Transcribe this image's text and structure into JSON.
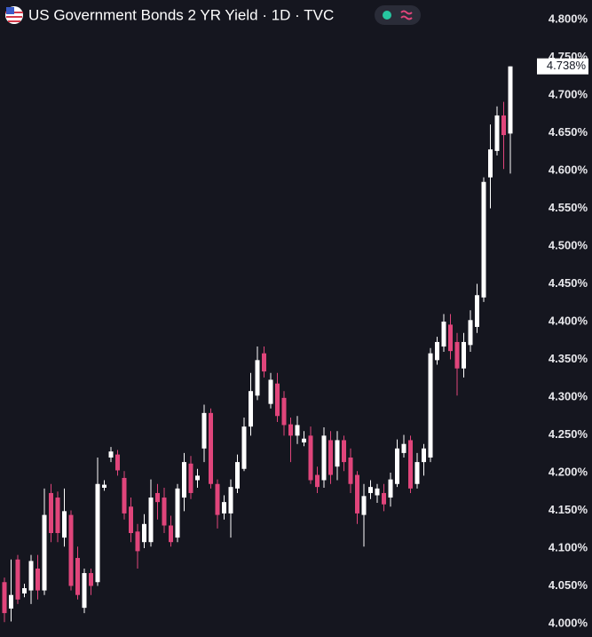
{
  "chart_data": {
    "type": "candlestick",
    "title": "US Government Bonds 2 YR Yield · 1D · TVC",
    "up_color": "#ffffff",
    "down_color": "#e0457b",
    "grid": false,
    "open": [
      4.055,
      4.02,
      4.085,
      4.04,
      4.044,
      4.073,
      4.044,
      4.173,
      4.167,
      4.114,
      4.144,
      4.087,
      4.021,
      4.067,
      4.055,
      4.18,
      4.22,
      4.224,
      4.193,
      4.155,
      4.122,
      4.108,
      4.108,
      4.173,
      4.167,
      4.13,
      4.114,
      4.167,
      4.212,
      4.19,
      4.232,
      4.279,
      4.185,
      4.146,
      4.146,
      4.179,
      4.205,
      4.261,
      4.302,
      4.358,
      4.291,
      4.318,
      4.299,
      4.264,
      4.249,
      4.24,
      4.249,
      4.197,
      4.19,
      4.243,
      4.208,
      4.243,
      4.22,
      4.197,
      4.144,
      4.173,
      4.17,
      4.173,
      4.167,
      4.185,
      4.226,
      4.243,
      4.185,
      4.214,
      4.22,
      4.349,
      4.367,
      4.396,
      4.373,
      4.338,
      4.369,
      4.393,
      4.432,
      4.591,
      4.626,
      4.673,
      4.649
    ],
    "high": [
      4.061,
      4.085,
      4.091,
      4.053,
      4.091,
      4.091,
      4.179,
      4.185,
      4.175,
      4.179,
      4.15,
      4.102,
      4.073,
      4.073,
      4.22,
      4.19,
      4.234,
      4.23,
      4.202,
      4.167,
      4.132,
      4.145,
      4.191,
      4.185,
      4.18,
      4.143,
      4.185,
      4.226,
      4.222,
      4.205,
      4.29,
      4.285,
      4.191,
      4.17,
      4.191,
      4.224,
      4.273,
      4.332,
      4.367,
      4.367,
      4.332,
      4.332,
      4.308,
      4.273,
      4.275,
      4.255,
      4.261,
      4.208,
      4.26,
      4.255,
      4.255,
      4.249,
      4.232,
      4.202,
      4.185,
      4.19,
      4.185,
      4.185,
      4.2,
      4.244,
      4.25,
      4.249,
      4.226,
      4.238,
      4.365,
      4.38,
      4.41,
      4.41,
      4.385,
      4.385,
      4.415,
      4.45,
      4.591,
      4.661,
      4.685,
      4.691,
      4.738
    ],
    "low": [
      4.002,
      4.003,
      4.026,
      4.035,
      4.026,
      4.032,
      4.038,
      4.108,
      4.108,
      4.102,
      4.044,
      4.032,
      4.014,
      4.038,
      4.05,
      4.176,
      4.214,
      4.196,
      4.138,
      4.108,
      4.073,
      4.1,
      4.102,
      4.138,
      4.12,
      4.102,
      4.108,
      4.149,
      4.165,
      4.18,
      4.214,
      4.179,
      4.126,
      4.138,
      4.114,
      4.173,
      4.202,
      4.249,
      4.296,
      4.326,
      4.285,
      4.267,
      4.249,
      4.214,
      4.238,
      4.235,
      4.185,
      4.173,
      4.18,
      4.185,
      4.19,
      4.202,
      4.173,
      4.132,
      4.102,
      4.165,
      4.16,
      4.149,
      4.155,
      4.181,
      4.22,
      4.173,
      4.179,
      4.196,
      4.214,
      4.343,
      4.36,
      4.35,
      4.302,
      4.326,
      4.36,
      4.385,
      4.426,
      4.55,
      4.62,
      4.602,
      4.596
    ],
    "close": [
      4.014,
      4.038,
      4.032,
      4.047,
      4.083,
      4.044,
      4.144,
      4.12,
      4.12,
      4.149,
      4.05,
      4.038,
      4.067,
      4.05,
      4.185,
      4.184,
      4.228,
      4.203,
      4.146,
      4.12,
      4.096,
      4.132,
      4.167,
      4.161,
      4.13,
      4.108,
      4.179,
      4.214,
      4.173,
      4.196,
      4.279,
      4.185,
      4.144,
      4.161,
      4.181,
      4.214,
      4.261,
      4.308,
      4.349,
      4.334,
      4.323,
      4.275,
      4.263,
      4.249,
      4.263,
      4.245,
      4.19,
      4.181,
      4.249,
      4.197,
      4.243,
      4.214,
      4.185,
      4.146,
      4.169,
      4.181,
      4.179,
      4.158,
      4.191,
      4.232,
      4.238,
      4.179,
      4.214,
      4.232,
      4.358,
      4.373,
      4.4,
      4.361,
      4.338,
      4.373,
      4.402,
      4.435,
      4.585,
      4.628,
      4.673,
      4.647,
      4.738
    ],
    "ylim": [
      4.0,
      4.8
    ],
    "yticks": [
      {
        "value": 4.0,
        "label": "4.000%"
      },
      {
        "value": 4.05,
        "label": "4.050%"
      },
      {
        "value": 4.1,
        "label": "4.100%"
      },
      {
        "value": 4.15,
        "label": "4.150%"
      },
      {
        "value": 4.2,
        "label": "4.200%"
      },
      {
        "value": 4.25,
        "label": "4.250%"
      },
      {
        "value": 4.3,
        "label": "4.300%"
      },
      {
        "value": 4.35,
        "label": "4.350%"
      },
      {
        "value": 4.4,
        "label": "4.400%"
      },
      {
        "value": 4.45,
        "label": "4.450%"
      },
      {
        "value": 4.5,
        "label": "4.500%"
      },
      {
        "value": 4.55,
        "label": "4.550%"
      },
      {
        "value": 4.6,
        "label": "4.600%"
      },
      {
        "value": 4.65,
        "label": "4.650%"
      },
      {
        "value": 4.7,
        "label": "4.700%"
      },
      {
        "value": 4.75,
        "label": "4.750%"
      },
      {
        "value": 4.8,
        "label": "4.800%"
      }
    ],
    "last_price": {
      "value": 4.738,
      "label": "4.738%"
    }
  }
}
